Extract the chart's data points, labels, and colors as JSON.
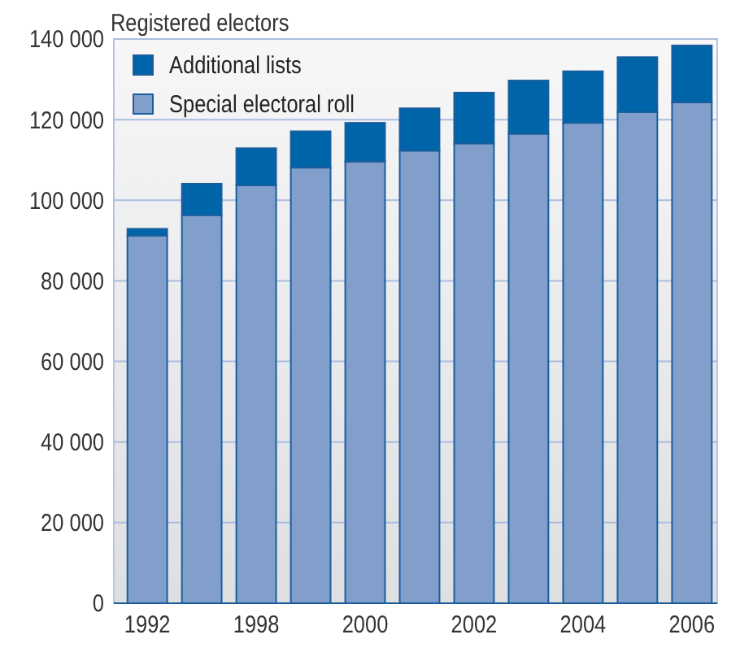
{
  "chart_data": {
    "type": "bar",
    "title": "Registered electors",
    "stacked": true,
    "categories": [
      "1992",
      null,
      "1998",
      null,
      "2000",
      null,
      "2002",
      null,
      "2004",
      null,
      "2006"
    ],
    "series": [
      {
        "name": "Special electoral roll",
        "color": "#829fcb",
        "values": [
          91200,
          96300,
          103700,
          108100,
          109600,
          112300,
          114100,
          116500,
          119200,
          121900,
          124300
        ]
      },
      {
        "name": "Additional lists",
        "color": "#0065a8",
        "values": [
          1700,
          7800,
          9200,
          9000,
          9600,
          10500,
          12600,
          13200,
          12800,
          13600,
          14100
        ]
      }
    ],
    "ylim": [
      0,
      140000
    ],
    "yticks": [
      {
        "value": 0,
        "label": "0"
      },
      {
        "value": 20000,
        "label": "20 000"
      },
      {
        "value": 40000,
        "label": "40 000"
      },
      {
        "value": 60000,
        "label": "60 000"
      },
      {
        "value": 80000,
        "label": "80 000"
      },
      {
        "value": 100000,
        "label": "100 000"
      },
      {
        "value": 120000,
        "label": "120 000"
      },
      {
        "value": 140000,
        "label": "140 000"
      }
    ],
    "grid": "y",
    "legend": "top left"
  }
}
